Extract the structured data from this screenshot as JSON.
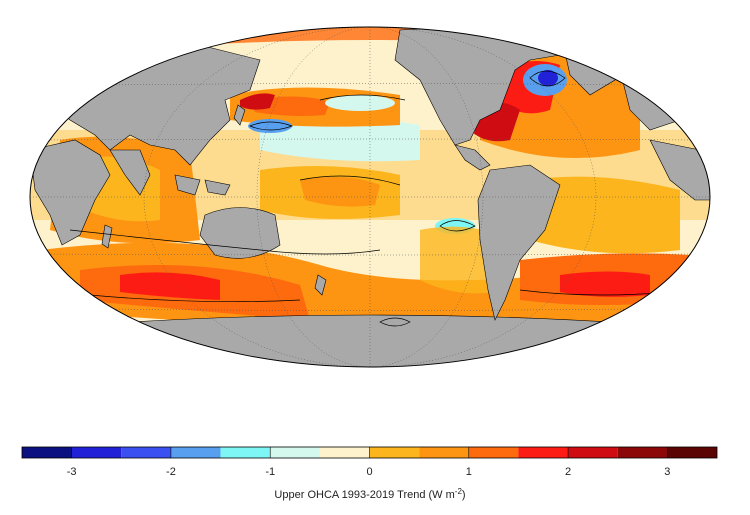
{
  "colorbar": {
    "title_main": "Upper OHCA 1993-2019 Trend (W m",
    "title_sup": "-2",
    "title_end": ")",
    "range": [
      -3.5,
      3.5
    ],
    "bin_width": 0.5,
    "tick_values": [
      -3,
      -2,
      -1,
      0,
      1,
      2,
      3
    ],
    "tick_labels": [
      "-3",
      "-2",
      "-1",
      "0",
      "1",
      "2",
      "3"
    ],
    "colors": [
      "#0b1180",
      "#2121d8",
      "#3a50f0",
      "#58a0ef",
      "#7ff6f6",
      "#d4f7ee",
      "#fdf2cc",
      "#fcb51c",
      "#fd9513",
      "#fe6a0e",
      "#fd1c13",
      "#cf0c12",
      "#8c0707",
      "#5a0404"
    ]
  },
  "map": {
    "projection": "mollweide",
    "land_color": "#a9a9a9",
    "background": "#ffffff"
  }
}
